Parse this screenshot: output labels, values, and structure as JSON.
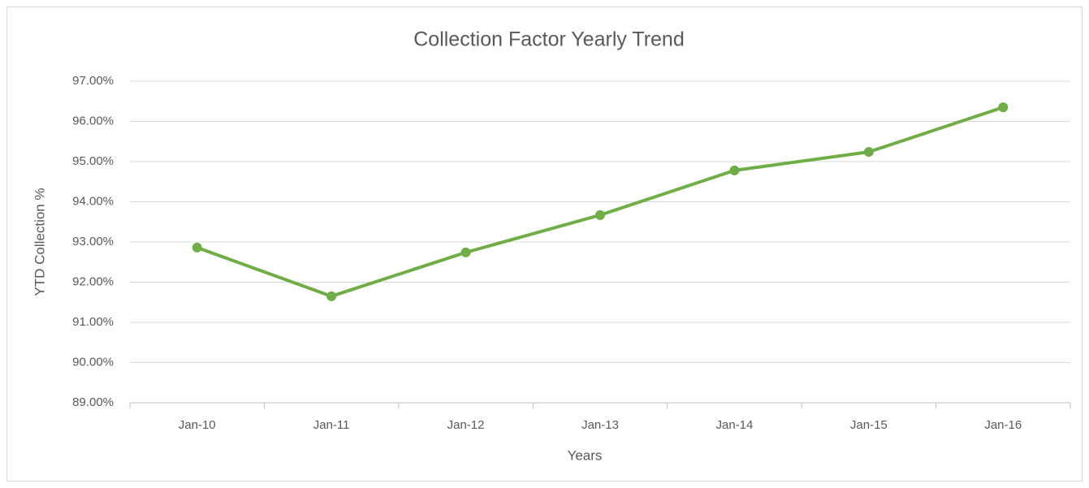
{
  "chart_data": {
    "type": "line",
    "title": "Collection Factor Yearly Trend",
    "x_label": "Years",
    "y_label": "YTD Collection %",
    "categories": [
      "Jan-10",
      "Jan-11",
      "Jan-12",
      "Jan-13",
      "Jan-14",
      "Jan-15",
      "Jan-16"
    ],
    "series": [
      {
        "name": "YTD Collection %",
        "color": "#70ad47",
        "values": [
          92.86,
          91.65,
          92.74,
          93.67,
          94.78,
          95.24,
          96.35
        ]
      }
    ],
    "ylim": [
      89,
      97
    ],
    "yticks": [
      {
        "value": 89,
        "label": "89.00%"
      },
      {
        "value": 90,
        "label": "90.00%"
      },
      {
        "value": 91,
        "label": "91.00%"
      },
      {
        "value": 92,
        "label": "92.00%"
      },
      {
        "value": 93,
        "label": "93.00%"
      },
      {
        "value": 94,
        "label": "94.00%"
      },
      {
        "value": 95,
        "label": "95.00%"
      },
      {
        "value": 96,
        "label": "96.00%"
      },
      {
        "value": 97,
        "label": "97.00%"
      }
    ],
    "grid": true
  }
}
